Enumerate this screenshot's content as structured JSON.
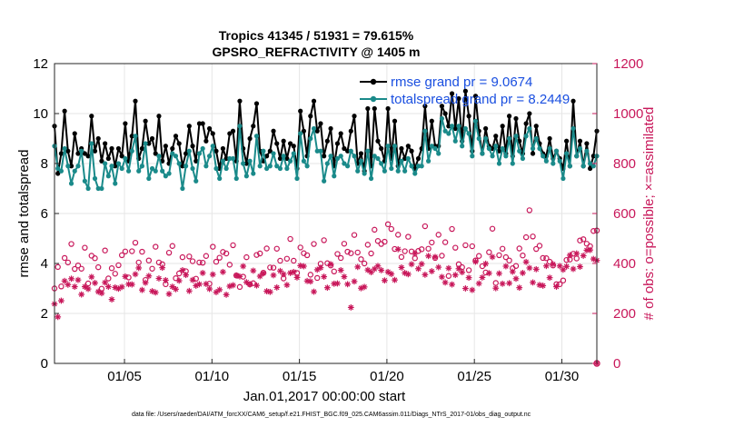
{
  "chart_data": {
    "type": "line",
    "title_line1": "Tropics 41345 / 51931 = 79.615%",
    "title_line2": "GPSRO_REFRACTIVITY @ 1405 m",
    "xlabel": "Jan.01,2017 00:00:00 start",
    "ylabel_left": "rmse and totalspread",
    "ylabel_right": "# of obs: o=possible; ×=assimilated",
    "footer": "data file: /Users/raeder/DAI/ATM_forcXX/CAM6_setup/f.e21.FHIST_BGC.f09_025.CAM6assim.011/Diags_NTrS_2017-01/obs_diag_output.nc",
    "xlim": [
      1,
      32
    ],
    "xticks": [
      5,
      10,
      15,
      20,
      25,
      30
    ],
    "xticklabels": [
      "01/05",
      "01/10",
      "01/15",
      "01/20",
      "01/25",
      "01/30"
    ],
    "ylim_left": [
      0,
      12
    ],
    "yticks_left": [
      "0",
      "2",
      "4",
      "6",
      "8",
      "10",
      "12"
    ],
    "ylim_right": [
      0,
      1200
    ],
    "yticks_right": [
      "0",
      "200",
      "400",
      "600",
      "800",
      "1000",
      "1200"
    ],
    "colors": {
      "rmse": "#000000",
      "spread": "#1a8a8a",
      "obs": "#c8175a",
      "legend_text": "#1a4fe0",
      "grid": "#e6e6e6"
    },
    "series": [
      {
        "name": "rmse grand pr = 9.0674",
        "values": [
          9.5,
          7.6,
          8.4,
          10.1,
          8.5,
          7.9,
          9.2,
          8.4,
          8.6,
          8.4,
          8.3,
          9.9,
          8.5,
          9.0,
          8.1,
          8.8,
          8.2,
          8.6,
          7.9,
          8.6,
          8.3,
          9.6,
          8.1,
          9.1,
          10.5,
          8.2,
          8.6,
          9.7,
          8.8,
          9.0,
          8.4,
          9.9,
          8.1,
          8.7,
          8.0,
          8.6,
          9.1,
          8.8,
          7.9,
          8.4,
          9.5,
          8.7,
          8.1,
          9.6,
          9.6,
          8.9,
          9.4,
          9.2,
          8.5,
          7.8,
          8.6,
          8.2,
          9.2,
          9.3,
          8.1,
          10.5,
          8.6,
          8.0,
          9.0,
          9.5,
          10.4,
          8.5,
          8.1,
          8.3,
          8.5,
          9.3,
          8.8,
          8.2,
          8.9,
          8.2,
          8.8,
          8.7,
          7.8,
          10.1,
          9.3,
          8.3,
          9.9,
          10.5,
          9.3,
          9.6,
          8.3,
          8.9,
          9.4,
          7.9,
          8.8,
          9.2,
          8.6,
          8.5,
          9.3,
          9.9,
          8.0,
          8.4,
          7.7,
          10.2,
          7.9,
          10.2,
          8.9,
          8.6,
          8.1,
          10.2,
          8.2,
          9.7,
          7.9,
          8.6,
          8.2,
          8.7,
          8.5,
          7.8,
          8.2,
          8.6,
          10.3,
          8.6,
          9.7,
          8.7,
          8.7,
          10.3,
          10.0,
          9.5,
          10.8,
          9.4,
          10.6,
          8.9,
          10.9,
          9.9,
          8.5,
          10.7,
          9.3,
          8.4,
          9.4,
          8.7,
          8.6,
          9.1,
          8.5,
          9.5,
          8.4,
          9.9,
          8.3,
          9.8,
          8.9,
          8.4,
          9.6,
          10.0,
          8.4,
          9.5,
          8.8,
          8.4,
          8.3,
          9.0,
          8.2,
          8.5,
          8.2,
          7.8,
          8.9,
          7.9,
          10.5,
          8.3,
          8.9,
          7.9,
          8.8,
          7.8,
          8.3,
          9.3
        ]
      },
      {
        "name": "totalspread grand pr = 8.2449",
        "values": [
          8.7,
          7.8,
          7.7,
          8.6,
          7.9,
          7.2,
          7.7,
          7.9,
          8.5,
          7.3,
          7.0,
          8.8,
          7.4,
          7.0,
          7.0,
          8.0,
          7.5,
          7.9,
          7.2,
          8.0,
          7.8,
          8.2,
          7.7,
          8.5,
          9.1,
          7.7,
          7.9,
          8.8,
          7.4,
          7.8,
          7.7,
          8.3,
          7.7,
          7.5,
          7.6,
          8.4,
          8.3,
          8.0,
          7.0,
          7.9,
          8.5,
          7.8,
          7.3,
          8.4,
          8.6,
          7.9,
          8.3,
          8.7,
          7.8,
          7.4,
          8.1,
          7.8,
          8.2,
          8.2,
          7.4,
          9.5,
          8.0,
          7.5,
          8.1,
          7.6,
          9.1,
          7.9,
          8.5,
          7.8,
          7.9,
          8.4,
          7.9,
          7.8,
          8.3,
          7.8,
          8.1,
          8.4,
          7.4,
          9.2,
          8.1,
          7.9,
          9.0,
          9.4,
          8.5,
          8.5,
          7.3,
          8.0,
          8.3,
          7.5,
          8.2,
          8.3,
          8.0,
          7.9,
          8.5,
          8.3,
          7.7,
          8.1,
          7.6,
          8.5,
          7.4,
          8.3,
          8.2,
          8.0,
          7.7,
          8.7,
          7.8,
          8.7,
          7.7,
          8.1,
          7.7,
          8.2,
          7.9,
          7.6,
          7.9,
          7.9,
          9.3,
          8.1,
          8.7,
          8.6,
          8.4,
          9.8,
          9.3,
          9.2,
          9.5,
          8.9,
          9.5,
          8.7,
          9.4,
          9.2,
          8.3,
          9.7,
          9.0,
          8.4,
          9.0,
          8.6,
          8.3,
          8.7,
          8.0,
          8.6,
          8.3,
          9.0,
          8.0,
          9.1,
          8.5,
          8.2,
          9.1,
          9.4,
          8.6,
          9.0,
          8.6,
          8.3,
          8.1,
          8.6,
          8.0,
          8.5,
          8.1,
          7.4,
          8.4,
          7.9,
          9.4,
          8.3,
          8.6,
          7.9,
          8.5,
          8.0,
          7.9,
          8.3
        ]
      },
      {
        "name": "possible",
        "values": [
          300,
          386,
          308,
          422,
          404,
          478,
          378,
          392,
          379,
          463,
          320,
          431,
          421,
          385,
          299,
          452,
          340,
          381,
          359,
          393,
          433,
          448,
          344,
          449,
          483,
          404,
          447,
          334,
          412,
          379,
          467,
          404,
          397,
          317,
          443,
          470,
          341,
          360,
          425,
          369,
          428,
          409,
          339,
          404,
          403,
          430,
          319,
          467,
          407,
          423,
          446,
          440,
          395,
          473,
          352,
          306,
          347,
          425,
          317,
          321,
          434,
          440,
          363,
          460,
          384,
          383,
          459,
          411,
          340,
          419,
          498,
          411,
          362,
          464,
          441,
          433,
          355,
          478,
          342,
          399,
          493,
          401,
          392,
          368,
          438,
          422,
          479,
          447,
          441,
          514,
          444,
          417,
          400,
          475,
          440,
          535,
          490,
          478,
          487,
          557,
          538,
          458,
          515,
          426,
          449,
          507,
          448,
          421,
          450,
          457,
          549,
          459,
          484,
          422,
          515,
          431,
          485,
          350,
          538,
          463,
          397,
          385,
          473,
          373,
          469,
          412,
          430,
          389,
          364,
          445,
          539,
          322,
          433,
          459,
          425,
          412,
          381,
          390,
          460,
          432,
          505,
          613,
          508,
          458,
          471,
          422,
          421,
          407,
          392,
          317,
          317,
          332,
          414,
          416,
          439,
          420,
          492,
          497,
          479,
          469,
          530,
          532
        ]
      },
      {
        "name": "assimilated",
        "values": [
          238,
          186,
          251,
          330,
          315,
          339,
          307,
          334,
          276,
          307,
          298,
          346,
          322,
          287,
          281,
          324,
          307,
          256,
          304,
          299,
          306,
          348,
          317,
          316,
          357,
          382,
          294,
          323,
          350,
          289,
          284,
          340,
          383,
          333,
          278,
          307,
          297,
          331,
          373,
          354,
          290,
          334,
          311,
          317,
          362,
          318,
          298,
          356,
          285,
          295,
          366,
          275,
          309,
          313,
          352,
          348,
          389,
          325,
          316,
          371,
          312,
          349,
          361,
          289,
          286,
          353,
          304,
          370,
          357,
          314,
          362,
          366,
          344,
          391,
          389,
          330,
          328,
          287,
          375,
          383,
          347,
          303,
          397,
          319,
          320,
          373,
          347,
          317,
          224,
          328,
          386,
          301,
          306,
          374,
          365,
          378,
          390,
          373,
          332,
          366,
          358,
          334,
          457,
          384,
          362,
          357,
          397,
          440,
          379,
          398,
          355,
          430,
          369,
          426,
          385,
          346,
          324,
          381,
          316,
          354,
          379,
          365,
          300,
          343,
          294,
          407,
          320,
          344,
          399,
          361,
          426,
          301,
          360,
          319,
          389,
          321,
          367,
          339,
          303,
          362,
          406,
          382,
          324,
          377,
          314,
          311,
          390,
          343,
          397,
          307,
          390,
          375,
          388,
          433,
          378,
          440,
          387,
          431,
          453,
          454,
          418,
          412
        ]
      }
    ],
    "legend_position": "top-right"
  }
}
